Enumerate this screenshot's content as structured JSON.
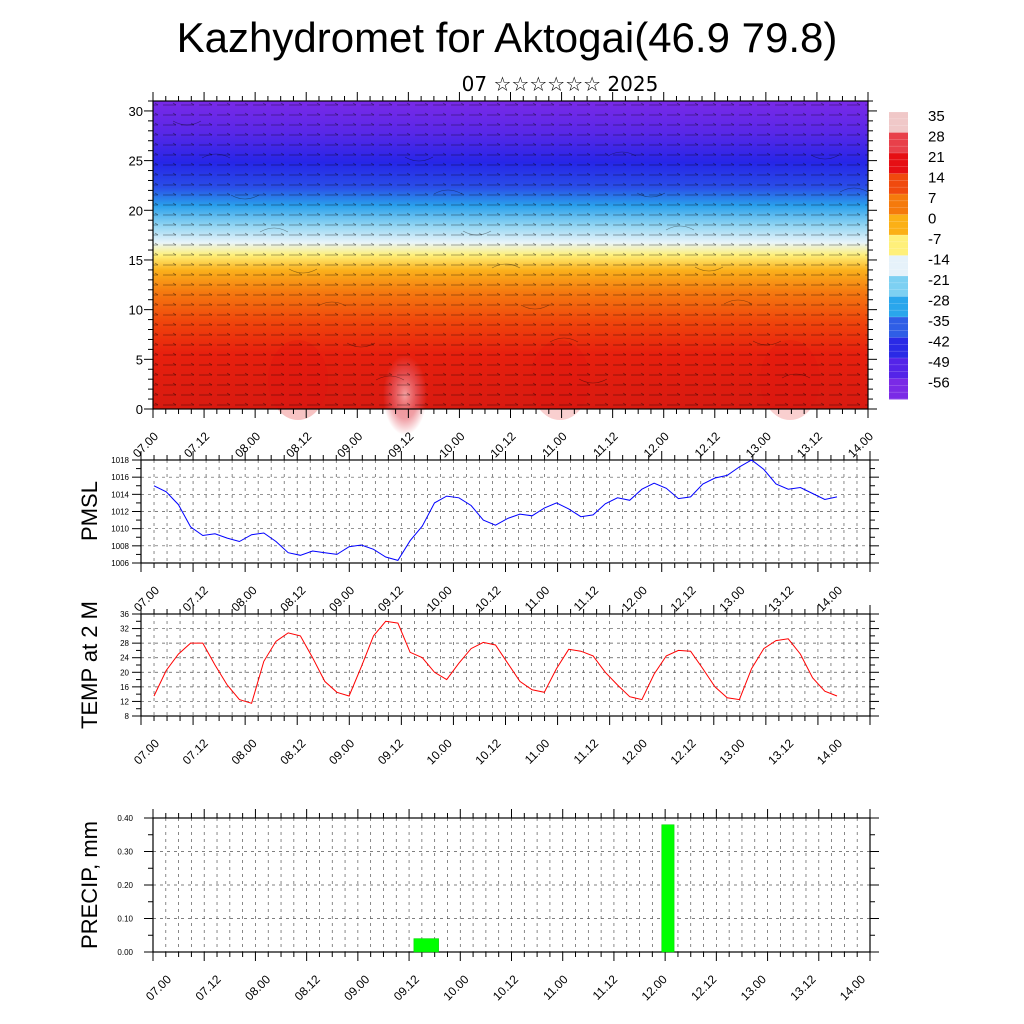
{
  "header": {
    "title": "Kazhydromet for Aktogai(46.9 79.8)",
    "subtitle": "07 ☆☆☆☆☆☆ 2025"
  },
  "chart_data": [
    {
      "type": "heatmap",
      "title": "",
      "ylabel": "",
      "ylim": [
        0,
        31
      ],
      "yticks": [
        "0",
        "5",
        "10",
        "15",
        "20",
        "25",
        "30"
      ],
      "xticks": [
        "07.00",
        "07.12",
        "08.00",
        "08.12",
        "09.00",
        "09.12",
        "10.00",
        "10.12",
        "11.00",
        "11.12",
        "12.00",
        "12.12",
        "13.00",
        "13.12",
        "14.00"
      ],
      "colorbar": {
        "labels": [
          "35",
          "28",
          "21",
          "14",
          "7",
          "0",
          "-7",
          "-14",
          "-21",
          "-28",
          "-35",
          "-42",
          "-49",
          "-56"
        ],
        "colors": [
          "#f0c8c8",
          "#e8404a",
          "#e60f14",
          "#f04a0e",
          "#f57a0c",
          "#fbb016",
          "#fff07a",
          "#e6f2fa",
          "#7dd0f2",
          "#2aa6ec",
          "#2f5ee6",
          "#2a2ae6",
          "#5424e8",
          "#7a2ae6"
        ]
      },
      "overlay": "wind vectors"
    },
    {
      "type": "line",
      "ylabel": "PMSL",
      "ylim": [
        1006,
        1018
      ],
      "yticks": [
        "1006",
        "1008",
        "1010",
        "1012",
        "1014",
        "1016",
        "1018"
      ],
      "xticks": [
        "07.00",
        "07.12",
        "08.00",
        "08.12",
        "09.00",
        "09.12",
        "10.00",
        "10.12",
        "11.00",
        "11.12",
        "12.00",
        "12.12",
        "13.00",
        "13.12",
        "14.00"
      ],
      "color": "#0000ff",
      "series": [
        {
          "values": [
            1015.0,
            1014.3,
            1012.8,
            1010.2,
            1009.2,
            1009.4,
            1008.9,
            1008.5,
            1009.3,
            1009.5,
            1008.5,
            1007.2,
            1006.9,
            1007.4,
            1007.2,
            1007.0,
            1007.9,
            1008.1,
            1007.6,
            1006.7,
            1006.3,
            1008.6,
            1010.3,
            1013.0,
            1013.8,
            1013.6,
            1012.7,
            1011.0,
            1010.4,
            1011.2,
            1011.7,
            1011.5,
            1012.4,
            1013.0,
            1012.3,
            1011.4,
            1011.6,
            1012.9,
            1013.6,
            1013.3,
            1014.6,
            1015.3,
            1014.7,
            1013.5,
            1013.7,
            1015.2,
            1015.9,
            1016.2,
            1017.2,
            1018.0,
            1016.9,
            1015.2,
            1014.6,
            1014.8,
            1014.1,
            1013.4,
            1013.7
          ]
        }
      ]
    },
    {
      "type": "line",
      "ylabel": "TEMP at 2 M",
      "ylim": [
        8,
        36
      ],
      "yticks": [
        "8",
        "12",
        "16",
        "20",
        "24",
        "28",
        "32",
        "36"
      ],
      "xticks": [
        "07.00",
        "07.12",
        "08.00",
        "08.12",
        "09.00",
        "09.12",
        "10.00",
        "10.12",
        "11.00",
        "11.12",
        "12.00",
        "12.12",
        "13.00",
        "13.12",
        "14.00"
      ],
      "color": "#ff0000",
      "series": [
        {
          "values": [
            13.5,
            20.5,
            25.0,
            28.0,
            28.0,
            22.0,
            16.5,
            12.5,
            11.5,
            23.0,
            28.5,
            30.8,
            30.0,
            24.0,
            17.5,
            14.5,
            13.5,
            21.5,
            30.0,
            34.0,
            33.5,
            25.5,
            24.0,
            20.0,
            18.0,
            22.5,
            26.5,
            28.2,
            27.5,
            22.5,
            17.5,
            15.2,
            14.5,
            21.0,
            26.3,
            25.8,
            24.5,
            20.0,
            16.5,
            13.3,
            12.5,
            19.5,
            24.5,
            26.0,
            25.8,
            21.0,
            16.0,
            13.0,
            12.5,
            21.0,
            26.5,
            28.7,
            29.2,
            25.0,
            18.5,
            14.8,
            13.5
          ]
        }
      ]
    },
    {
      "type": "bar",
      "ylabel": "PRECIP, mm",
      "ylim": [
        0,
        0.4
      ],
      "yticks": [
        "0.00",
        "0.10",
        "0.20",
        "0.30",
        "0.40"
      ],
      "xticks": [
        "07.00",
        "07.12",
        "08.00",
        "08.12",
        "09.00",
        "09.12",
        "10.00",
        "10.12",
        "11.00",
        "11.12",
        "12.00",
        "12.12",
        "13.00",
        "13.12",
        "14.00"
      ],
      "color": "#00ff00",
      "bars": [
        {
          "x_hours": 60,
          "width_hours": 6,
          "value": 0.04
        },
        {
          "x_hours": 120,
          "width_hours": 3,
          "value": 0.38
        }
      ]
    }
  ]
}
